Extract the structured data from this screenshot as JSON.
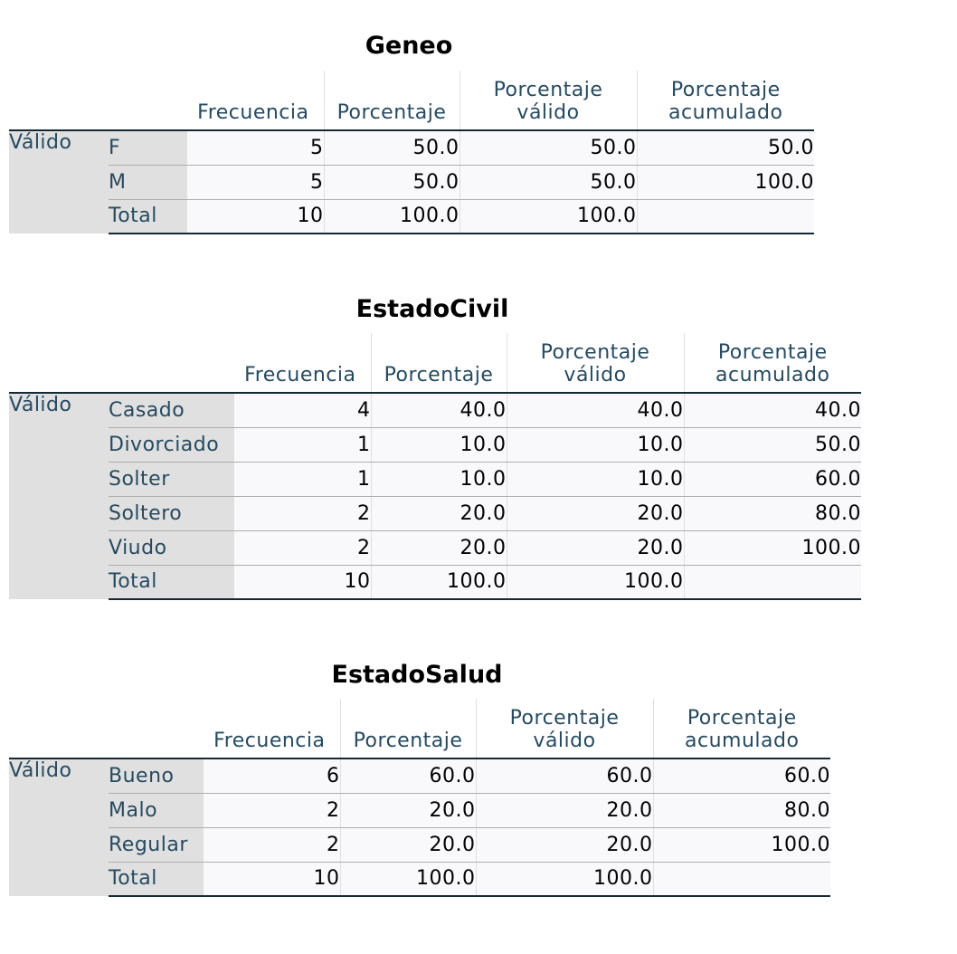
{
  "headers": {
    "frecuencia": "Frecuencia",
    "porcentaje": "Porcentaje",
    "porcentaje_valido_1": "Porcentaje",
    "porcentaje_valido_2": "válido",
    "porcentaje_acumulado_1": "Porcentaje",
    "porcentaje_acumulado_2": "acumulado"
  },
  "tables": [
    {
      "title": "Geneo",
      "group": "Válido",
      "rows": [
        {
          "label": "F",
          "frecuencia": "5",
          "porcentaje": "50.0",
          "valido": "50.0",
          "acumulado": "50.0"
        },
        {
          "label": "M",
          "frecuencia": "5",
          "porcentaje": "50.0",
          "valido": "50.0",
          "acumulado": "100.0"
        },
        {
          "label": "Total",
          "frecuencia": "10",
          "porcentaje": "100.0",
          "valido": "100.0",
          "acumulado": ""
        }
      ]
    },
    {
      "title": "EstadoCivil",
      "group": "Válido",
      "rows": [
        {
          "label": "Casado",
          "frecuencia": "4",
          "porcentaje": "40.0",
          "valido": "40.0",
          "acumulado": "40.0"
        },
        {
          "label": "Divorciado",
          "frecuencia": "1",
          "porcentaje": "10.0",
          "valido": "10.0",
          "acumulado": "50.0"
        },
        {
          "label": "Solter",
          "frecuencia": "1",
          "porcentaje": "10.0",
          "valido": "10.0",
          "acumulado": "60.0"
        },
        {
          "label": "Soltero",
          "frecuencia": "2",
          "porcentaje": "20.0",
          "valido": "20.0",
          "acumulado": "80.0"
        },
        {
          "label": "Viudo",
          "frecuencia": "2",
          "porcentaje": "20.0",
          "valido": "20.0",
          "acumulado": "100.0"
        },
        {
          "label": "Total",
          "frecuencia": "10",
          "porcentaje": "100.0",
          "valido": "100.0",
          "acumulado": ""
        }
      ]
    },
    {
      "title": "EstadoSalud",
      "group": "Válido",
      "rows": [
        {
          "label": "Bueno",
          "frecuencia": "6",
          "porcentaje": "60.0",
          "valido": "60.0",
          "acumulado": "60.0"
        },
        {
          "label": "Malo",
          "frecuencia": "2",
          "porcentaje": "20.0",
          "valido": "20.0",
          "acumulado": "80.0"
        },
        {
          "label": "Regular",
          "frecuencia": "2",
          "porcentaje": "20.0",
          "valido": "20.0",
          "acumulado": "100.0"
        },
        {
          "label": "Total",
          "frecuencia": "10",
          "porcentaje": "100.0",
          "valido": "100.0",
          "acumulado": ""
        }
      ]
    }
  ]
}
